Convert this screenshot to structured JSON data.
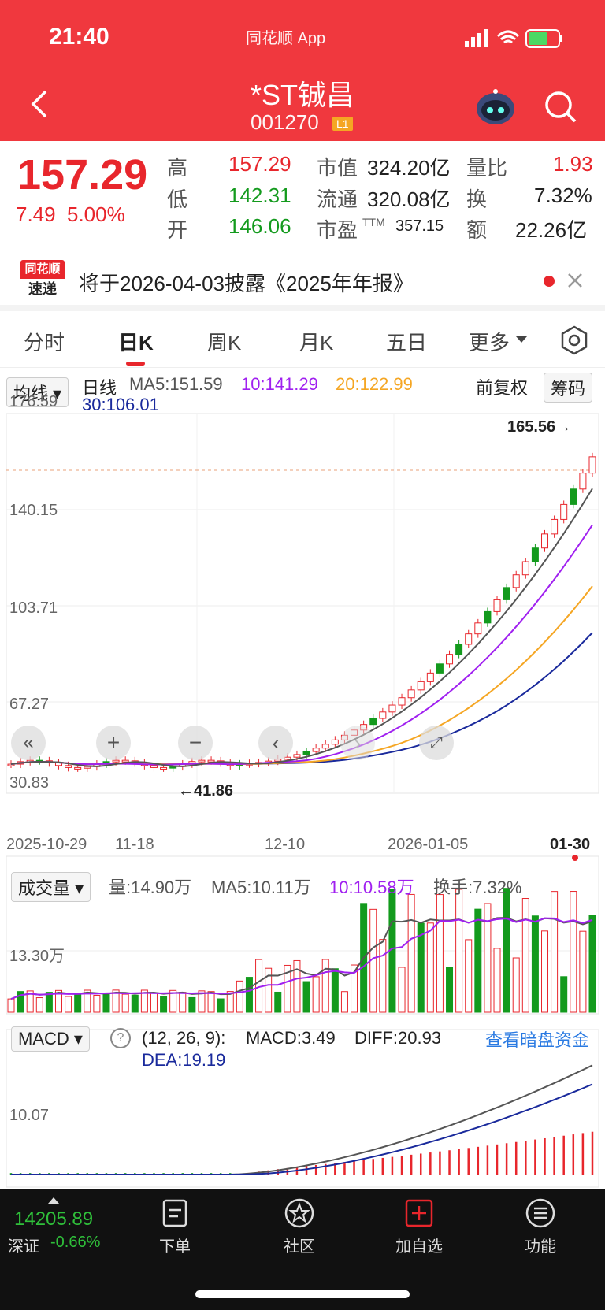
{
  "status": {
    "time": "21:40",
    "app_label": "同花顺 App"
  },
  "header": {
    "title": "*ST铖昌",
    "code": "001270",
    "level_badge": "L1"
  },
  "quote": {
    "price": "157.29",
    "change": "7.49",
    "change_pct": "5.00%",
    "high_label": "高",
    "high": "157.29",
    "low_label": "低",
    "low": "142.31",
    "open_label": "开",
    "open": "146.06",
    "mktcap_label": "市值",
    "mktcap": "324.20亿",
    "float_label": "流通",
    "float": "320.08亿",
    "pe_label": "市盈",
    "pe_sup": "TTM",
    "pe": "357.15",
    "vr_label": "量比",
    "vr": "1.93",
    "turn_label": "换",
    "turn": "7.32%",
    "amt_label": "额",
    "amt": "22.26亿"
  },
  "notice": {
    "badge_top": "同花顺",
    "badge_bottom": "速递",
    "text": "将于2026-04-03披露《2025年年报》"
  },
  "tabs": [
    "分时",
    "日K",
    "周K",
    "月K",
    "五日",
    "更多"
  ],
  "active_tab": "日K",
  "kline": {
    "indicator_select": "均线",
    "ma_label": "日线",
    "ma5": "MA5:151.59",
    "ma10": "10:141.29",
    "ma20": "20:122.99",
    "ma30": "30:106.01",
    "adjust": "前复权",
    "chips": "筹码",
    "y_ticks": [
      "176.59",
      "140.15",
      "103.71",
      "67.27",
      "30.83"
    ],
    "max_label": "165.56→",
    "min_label": "←41.86",
    "x_ticks": [
      "2025-10-29",
      "11-18",
      "12-10",
      "2026-01-05",
      "01-30"
    ],
    "colors": {
      "ma5": "#555555",
      "ma10": "#a020f0",
      "ma20": "#f5a623",
      "ma30": "#1a2a9c",
      "up": "#e8262c",
      "down": "#139a1d"
    }
  },
  "volume": {
    "select": "成交量",
    "vol": "量:14.90万",
    "ma5": "MA5:10.11万",
    "ma10": "10:10.58万",
    "turnover": "换手:7.32%",
    "y_tick": "13.30万"
  },
  "macd": {
    "select": "MACD",
    "params": "(12, 26, 9):",
    "macd": "MACD:3.49",
    "diff": "DIFF:20.93",
    "dea": "DEA:19.19",
    "link": "查看暗盘资金",
    "y_tick": "10.07"
  },
  "bottom": {
    "index_value": "14205.89",
    "index_name": "深证",
    "index_change": "-0.66%",
    "items": [
      "下单",
      "社区",
      "加自选",
      "功能"
    ]
  }
}
